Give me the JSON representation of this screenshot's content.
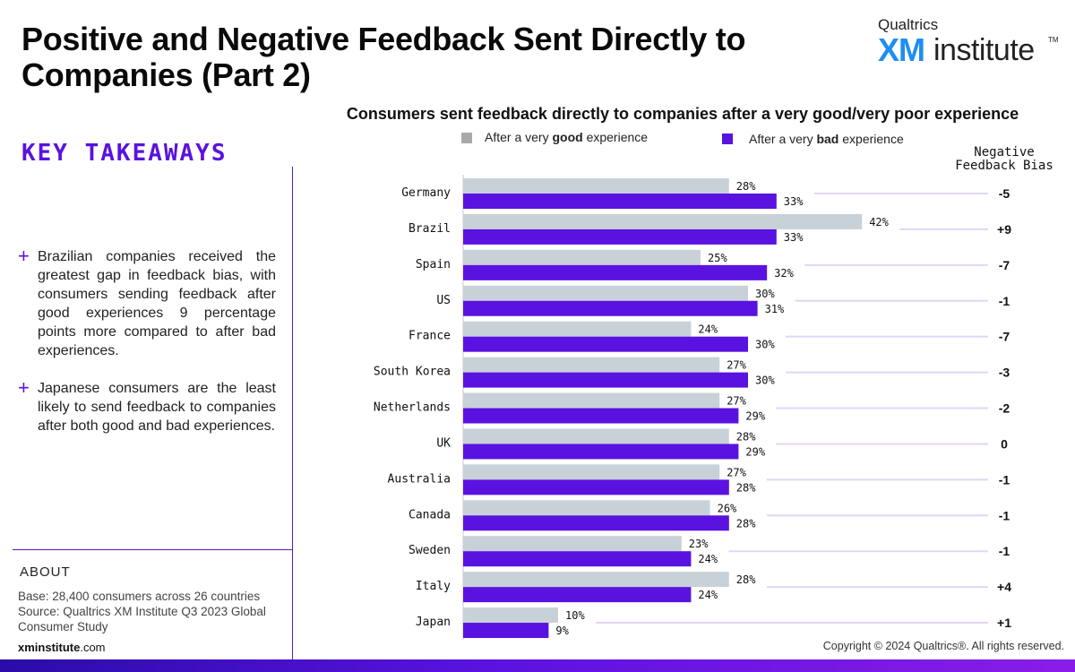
{
  "title": "Positive and Negative Feedback Sent Directly to Companies (Part 2)",
  "logo": {
    "top": "Qualtrics",
    "xm": "XM",
    "institute": "institute",
    "tm": "TM"
  },
  "takeaways": {
    "heading": "KEY TAKEAWAYS",
    "items": [
      {
        "icon": "+",
        "text": "Brazilian companies received the greatest gap in feedback bias, with consumers sending feedback after good experiences 9 percentage points more compared to after bad experiences."
      },
      {
        "icon": "+",
        "text": "Japanese consumers are the least likely to send feedback to companies after both good and bad experiences."
      }
    ]
  },
  "about": {
    "heading": "ABOUT",
    "base": "Base: 28,400 consumers across 26 countries",
    "source": "Source: Qualtrics XM Institute Q3 2023 Global Consumer Study"
  },
  "site": {
    "bold": "xminstitute",
    "rest": ".com"
  },
  "copyright": "Copyright © 2024 Qualtrics®. All rights reserved.",
  "colors": {
    "accent": "#5a12e0",
    "good": "#c9d1d8",
    "bad": "#5a12e0",
    "connector": "#e2d6f7",
    "legend_good": "#a9a9a9"
  },
  "chart_data": {
    "type": "bar",
    "orientation": "horizontal",
    "title": "Consumers sent feedback directly to companies after a very good/very poor experience",
    "legend": [
      {
        "pre": "After a very ",
        "bold": "good",
        "post": " experience"
      },
      {
        "pre": "After a very ",
        "bold": "bad",
        "post": " experience"
      }
    ],
    "bias_header": [
      "Negative",
      "Feedback Bias"
    ],
    "categories": [
      "Germany",
      "Brazil",
      "Spain",
      "US",
      "France",
      "South Korea",
      "Netherlands",
      "UK",
      "Australia",
      "Canada",
      "Sweden",
      "Italy",
      "Japan"
    ],
    "series": [
      {
        "name": "After a very good experience",
        "values": [
          28,
          42,
          25,
          30,
          24,
          27,
          27,
          28,
          27,
          26,
          23,
          28,
          10
        ]
      },
      {
        "name": "After a very bad experience",
        "values": [
          33,
          33,
          32,
          31,
          30,
          30,
          29,
          29,
          28,
          28,
          24,
          24,
          9
        ]
      }
    ],
    "bias": [
      "-5",
      "+9",
      "-7",
      "-1",
      "-7",
      "-3",
      "-2",
      "0",
      "-1",
      "-1",
      "-1",
      "+4",
      "+1"
    ],
    "xlim": [
      0,
      100
    ],
    "value_suffix": "%"
  }
}
